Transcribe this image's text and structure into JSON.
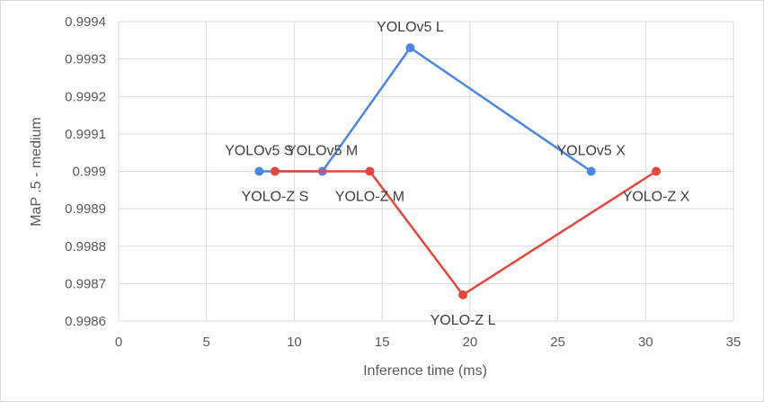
{
  "chart_data": {
    "type": "scatter",
    "title": "",
    "xlabel": "Inference time (ms)",
    "ylabel": "MaP .5 - medium",
    "xlim": [
      0,
      35
    ],
    "ylim": [
      0.9986,
      0.9994
    ],
    "x_ticks": [
      0,
      5,
      10,
      15,
      20,
      25,
      30,
      35
    ],
    "x_tick_labels": [
      "0",
      "5",
      "10",
      "15",
      "20",
      "25",
      "30",
      "35"
    ],
    "y_ticks": [
      0.9986,
      0.9987,
      0.9988,
      0.9989,
      0.999,
      0.9991,
      0.9992,
      0.9993,
      0.9994
    ],
    "y_tick_labels": [
      "0.9986",
      "0.9987",
      "0.9988",
      "0.9989",
      "0.999",
      "0.9991",
      "0.9992",
      "0.9993",
      "0.9994"
    ],
    "grid": true,
    "series": [
      {
        "name": "YOLOv5",
        "color": "#4A86E8",
        "points": [
          {
            "x": 8.0,
            "y": 0.999,
            "label": "YOLOv5 S",
            "label_pos": "above"
          },
          {
            "x": 11.6,
            "y": 0.999,
            "label": "YOLOv5 M",
            "label_pos": "above"
          },
          {
            "x": 16.6,
            "y": 0.99933,
            "label": "YOLOv5 L",
            "label_pos": "above"
          },
          {
            "x": 26.9,
            "y": 0.999,
            "label": "YOLOv5 X",
            "label_pos": "above"
          }
        ]
      },
      {
        "name": "YOLO-Z",
        "color": "#E8453C",
        "points": [
          {
            "x": 8.9,
            "y": 0.999,
            "label": "YOLO-Z S",
            "label_pos": "below"
          },
          {
            "x": 14.3,
            "y": 0.999,
            "label": "YOLO-Z M",
            "label_pos": "below"
          },
          {
            "x": 19.6,
            "y": 0.99867,
            "label": "YOLO-Z L",
            "label_pos": "below"
          },
          {
            "x": 30.6,
            "y": 0.999,
            "label": "YOLO-Z X",
            "label_pos": "below"
          }
        ]
      }
    ]
  }
}
